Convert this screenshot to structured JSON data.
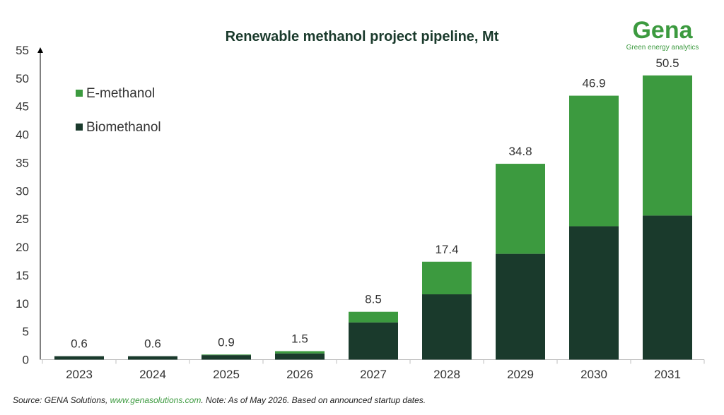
{
  "colors": {
    "biomethanol": "#1a3a2c",
    "emethanol": "#3c9a3f",
    "logo": "#3c9a3f",
    "title": "#1a3a2c"
  },
  "logo": {
    "name": "Gena",
    "tagline": "Green energy analytics"
  },
  "source": {
    "prefix": "Source: GENA Solutions, ",
    "link": "www.genasolutions.com",
    "suffix": ". Note: As of May 2026. Based on announced startup dates."
  },
  "chart_data": {
    "type": "bar",
    "stacked": true,
    "title": "Renewable methanol project pipeline, Mt",
    "xlabel": "",
    "ylabel": "",
    "ylim": [
      0,
      55
    ],
    "yticks": [
      0,
      5,
      10,
      15,
      20,
      25,
      30,
      35,
      40,
      45,
      50,
      55
    ],
    "grid": false,
    "legend_position": "top-left",
    "categories": [
      "2023",
      "2024",
      "2025",
      "2026",
      "2027",
      "2028",
      "2029",
      "2030",
      "2031"
    ],
    "series": [
      {
        "name": "Biomethanol",
        "values": [
          0.6,
          0.6,
          0.8,
          1.1,
          6.6,
          11.6,
          18.8,
          23.7,
          25.6
        ]
      },
      {
        "name": "E-methanol",
        "values": [
          0.0,
          0.0,
          0.1,
          0.4,
          1.9,
          5.8,
          16.0,
          23.2,
          24.9
        ]
      }
    ],
    "totals": [
      "0.6",
      "0.6",
      "0.9",
      "1.5",
      "8.5",
      "17.4",
      "34.8",
      "46.9",
      "50.5"
    ]
  }
}
